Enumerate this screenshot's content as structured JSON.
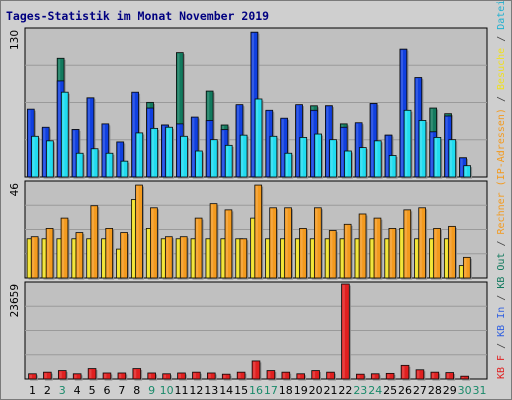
{
  "chart_data": {
    "title": "Tages-Statistik im Monat November 2019",
    "type": "bar",
    "x": [
      "1",
      "2",
      "3",
      "4",
      "5",
      "6",
      "7",
      "8",
      "9",
      "10",
      "11",
      "12",
      "13",
      "14",
      "15",
      "16",
      "17",
      "18",
      "19",
      "20",
      "21",
      "22",
      "23",
      "24",
      "25",
      "26",
      "27",
      "28",
      "29",
      "30",
      "31"
    ],
    "day_label_colors": [
      "#000000",
      "#000000",
      "#1a8a6a",
      "#000000",
      "#000000",
      "#000000",
      "#000000",
      "#000000",
      "#1a8a6a",
      "#1a8a6a",
      "#000000",
      "#000000",
      "#000000",
      "#000000",
      "#000000",
      "#1a8a6a",
      "#1a8a6a",
      "#000000",
      "#000000",
      "#000000",
      "#000000",
      "#000000",
      "#1a8a6a",
      "#1a8a6a",
      "#000000",
      "#000000",
      "#000000",
      "#000000",
      "#000000",
      "#1a8a6a",
      "#1a8a6a"
    ],
    "panels": [
      {
        "max_label": "130",
        "max": 130,
        "series": [
          {
            "name": "Anfragen",
            "color": "#127a5e",
            "values": [
              58,
              43,
              105,
              42,
              70,
              46,
              31,
              72,
              66,
              46,
              110,
              52,
              76,
              46,
              63,
              128,
              58,
              51,
              63,
              63,
              63,
              47,
              46,
              65,
              37,
              113,
              87,
              61,
              56,
              17,
              0
            ]
          },
          {
            "name": "Seiten",
            "color": "#1040e0",
            "values": [
              60,
              44,
              85,
              42,
              70,
              47,
              31,
              75,
              61,
              46,
              47,
              53,
              50,
              42,
              64,
              128,
              59,
              52,
              64,
              59,
              63,
              44,
              48,
              65,
              37,
              113,
              88,
              40,
              54,
              17,
              0
            ]
          },
          {
            "name": "Dateien",
            "color": "#20dcf0",
            "values": [
              36,
              32,
              75,
              21,
              25,
              21,
              14,
              39,
              43,
              44,
              36,
              23,
              33,
              28,
              37,
              69,
              36,
              21,
              35,
              38,
              33,
              23,
              26,
              32,
              19,
              59,
              50,
              35,
              33,
              10,
              0
            ]
          }
        ]
      },
      {
        "max_label": "46",
        "max": 46,
        "series": [
          {
            "name": "Besuche",
            "color": "#f0e020",
            "values": [
              19,
              19,
              19,
              19,
              19,
              19,
              14,
              38,
              24,
              19,
              19,
              19,
              19,
              19,
              19,
              29,
              19,
              19,
              19,
              19,
              19,
              19,
              19,
              19,
              19,
              24,
              19,
              19,
              19,
              6,
              0
            ]
          },
          {
            "name": "Rechner (IP-Adressen)",
            "color": "#f39a1e",
            "values": [
              20,
              24,
              29,
              22,
              35,
              24,
              22,
              45,
              34,
              20,
              20,
              29,
              36,
              33,
              19,
              45,
              34,
              34,
              24,
              34,
              23,
              26,
              31,
              29,
              24,
              33,
              34,
              24,
              25,
              10,
              0
            ]
          }
        ]
      },
      {
        "max_label": "23659",
        "max": 23659,
        "series": [
          {
            "name": "KB F",
            "color": "#e02020",
            "values": [
              1300,
              1700,
              2100,
              1300,
              2600,
              1500,
              1500,
              2600,
              1500,
              1300,
              1500,
              1700,
              1500,
              1200,
              1700,
              4500,
              2100,
              1700,
              1300,
              2100,
              1700,
              23659,
              1200,
              1300,
              1400,
              3400,
              2300,
              1700,
              1600,
              700,
              0
            ]
          }
        ]
      }
    ],
    "right_label_segments": [
      {
        "text": "KB F",
        "color": "#e02020"
      },
      {
        "text": " / ",
        "color": "#444444"
      },
      {
        "text": "KB In",
        "color": "#3060e0"
      },
      {
        "text": " / ",
        "color": "#444444"
      },
      {
        "text": "KB Out",
        "color": "#127a5e"
      },
      {
        "text": " / ",
        "color": "#444444"
      },
      {
        "text": "Rechner (IP-Adressen)",
        "color": "#f39a1e"
      },
      {
        "text": " / ",
        "color": "#444444"
      },
      {
        "text": "Besuche",
        "color": "#f0e020"
      },
      {
        "text": " / ",
        "color": "#444444"
      },
      {
        "text": "Dateien",
        "color": "#20b0d0"
      },
      {
        "text": " / ",
        "color": "#444444"
      },
      {
        "text": "Seiten",
        "color": "#1040e0"
      },
      {
        "text": " / ",
        "color": "#444444"
      },
      {
        "text": "Anfragen",
        "color": "#127a5e"
      }
    ],
    "colors": {
      "background": "#cfcfcf",
      "plot": "#c0c0c0",
      "grid": "#9a9a9a",
      "title": "#000080"
    }
  }
}
